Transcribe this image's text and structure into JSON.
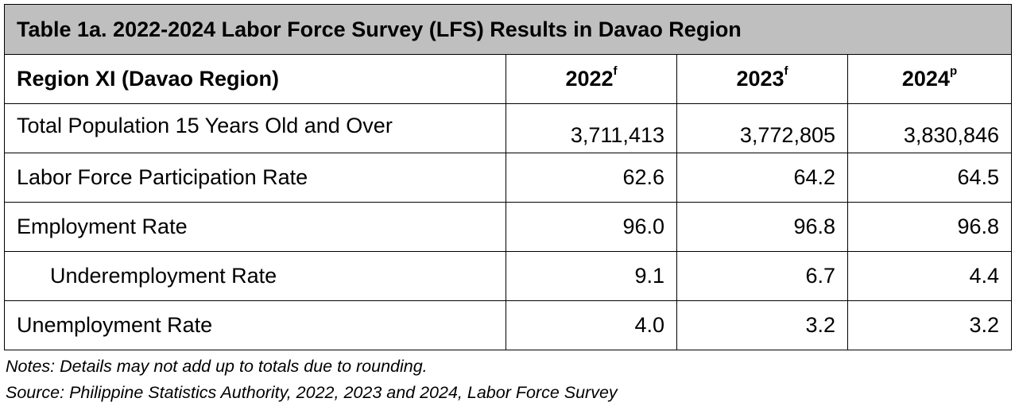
{
  "table": {
    "title": "Table 1a. 2022-2024 Labor Force Survey (LFS) Results in Davao Region",
    "header": {
      "label": "Region XI (Davao Region)",
      "columns": [
        {
          "year": "2022",
          "sup": "f"
        },
        {
          "year": "2023",
          "sup": "f"
        },
        {
          "year": "2024",
          "sup": "p"
        }
      ]
    },
    "rows": [
      {
        "label": "Total Population 15 Years Old and Over",
        "values": [
          "3,711,413",
          "3,772,805",
          "3,830,846"
        ]
      },
      {
        "label": "Labor Force Participation Rate",
        "values": [
          "62.6",
          "64.2",
          "64.5"
        ]
      },
      {
        "label": "Employment Rate",
        "values": [
          "96.0",
          "96.8",
          "96.8"
        ]
      },
      {
        "label": "Underemployment Rate",
        "values": [
          "9.1",
          "6.7",
          "4.4"
        ]
      },
      {
        "label": "Unemployment Rate",
        "values": [
          "4.0",
          "3.2",
          "3.2"
        ]
      }
    ]
  },
  "notes": {
    "note": "Notes: Details may not add up to totals due to rounding.",
    "source": "Source: Philippine Statistics Authority, 2022, 2023 and 2024, Labor Force Survey"
  },
  "colors": {
    "title_background": "#bfbfbf",
    "border": "#000000"
  }
}
